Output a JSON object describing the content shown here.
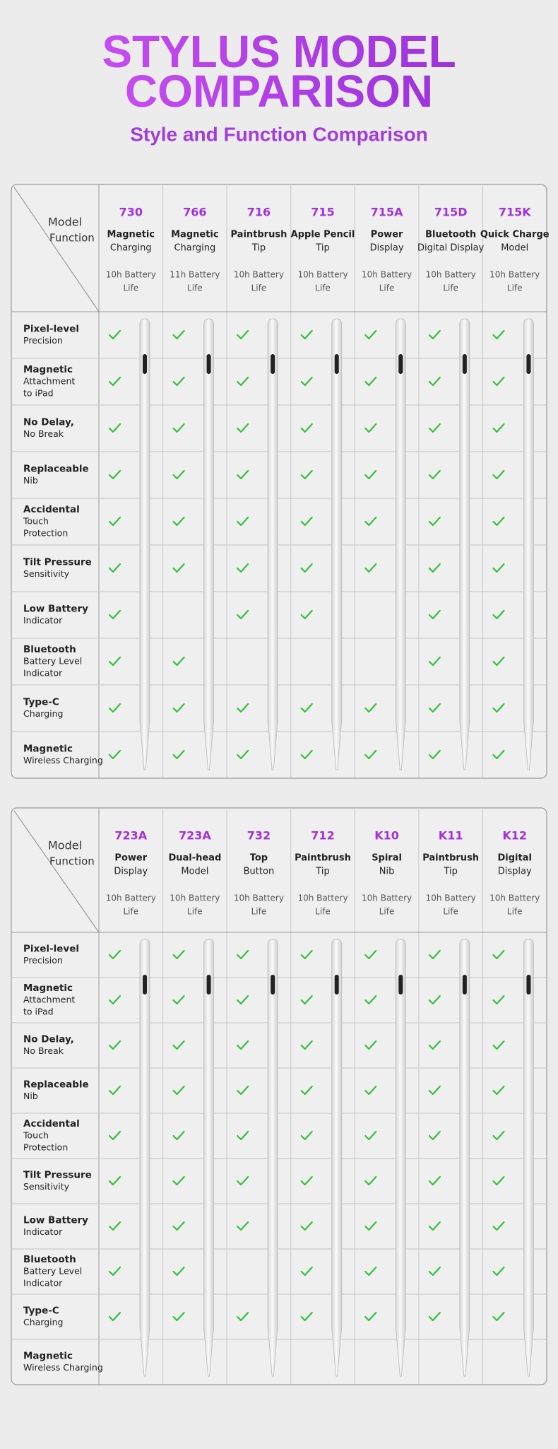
{
  "header": {
    "title_line1": "STYLUS MODEL",
    "title_line2": "COMPARISON",
    "subtitle": "Style and Function Comparison"
  },
  "tables": [
    {
      "corner_model": "Model",
      "corner_function": "Function",
      "models": [
        {
          "code": "730",
          "name": [
            "Magnetic",
            "Charging"
          ],
          "battery": [
            "10h Battery",
            "Life"
          ]
        },
        {
          "code": "766",
          "name": [
            "Magnetic",
            "Charging"
          ],
          "battery": [
            "11h Battery",
            "Life"
          ]
        },
        {
          "code": "716",
          "name": [
            "Paintbrush",
            "Tip"
          ],
          "battery": [
            "10h Battery",
            "Life"
          ]
        },
        {
          "code": "715",
          "name": [
            "Apple Pencil",
            "Tip"
          ],
          "battery": [
            "10h Battery",
            "Life"
          ]
        },
        {
          "code": "715A",
          "name": [
            "Power",
            "Display"
          ],
          "battery": [
            "10h Battery",
            "Life"
          ]
        },
        {
          "code": "715D",
          "name": [
            "Bluetooth",
            "Digital Display"
          ],
          "battery": [
            "10h Battery",
            "Life"
          ]
        },
        {
          "code": "715K",
          "name": [
            "Quick Charge",
            "Model"
          ],
          "battery": [
            "10h Battery",
            "Life"
          ]
        }
      ],
      "features": [
        {
          "label": [
            "Pixel-level",
            "Precision"
          ],
          "checks": [
            true,
            true,
            true,
            true,
            true,
            true,
            true
          ]
        },
        {
          "label": [
            "Magnetic",
            "Attachment",
            "to iPad"
          ],
          "checks": [
            true,
            true,
            true,
            true,
            true,
            true,
            true
          ]
        },
        {
          "label": [
            "No Delay,",
            "No Break"
          ],
          "checks": [
            true,
            true,
            true,
            true,
            true,
            true,
            true
          ]
        },
        {
          "label": [
            "Replaceable",
            "Nib"
          ],
          "checks": [
            true,
            true,
            true,
            true,
            true,
            true,
            true
          ]
        },
        {
          "label": [
            "Accidental",
            "Touch",
            "Protection"
          ],
          "checks": [
            true,
            true,
            true,
            true,
            true,
            true,
            true
          ]
        },
        {
          "label": [
            "Tilt Pressure",
            "Sensitivity"
          ],
          "checks": [
            true,
            true,
            true,
            true,
            true,
            true,
            true
          ]
        },
        {
          "label": [
            "Low Battery",
            "Indicator"
          ],
          "checks": [
            true,
            false,
            true,
            true,
            false,
            true,
            true
          ]
        },
        {
          "label": [
            "Bluetooth",
            "Battery Level",
            "Indicator"
          ],
          "checks": [
            true,
            true,
            false,
            false,
            false,
            true,
            true
          ]
        },
        {
          "label": [
            "Type-C",
            "Charging"
          ],
          "checks": [
            true,
            true,
            true,
            true,
            true,
            true,
            true
          ]
        },
        {
          "label": [
            "Magnetic",
            "Wireless Charging"
          ],
          "checks": [
            true,
            true,
            true,
            true,
            true,
            true,
            true
          ]
        }
      ]
    },
    {
      "corner_model": "Model",
      "corner_function": "Function",
      "models": [
        {
          "code": "723A",
          "name": [
            "Power",
            "Display"
          ],
          "battery": [
            "10h Battery",
            "Life"
          ]
        },
        {
          "code": "723A",
          "name": [
            "Dual-head",
            "Model"
          ],
          "battery": [
            "10h Battery",
            "Life"
          ]
        },
        {
          "code": "732",
          "name": [
            "Top",
            "Button"
          ],
          "battery": [
            "10h Battery",
            "Life"
          ]
        },
        {
          "code": "712",
          "name": [
            "Paintbrush",
            "Tip"
          ],
          "battery": [
            "10h Battery",
            "Life"
          ]
        },
        {
          "code": "K10",
          "name": [
            "Spiral",
            "Nib"
          ],
          "battery": [
            "10h Battery",
            "Life"
          ]
        },
        {
          "code": "K11",
          "name": [
            "Paintbrush",
            "Tip"
          ],
          "battery": [
            "10h Battery",
            "Life"
          ]
        },
        {
          "code": "K12",
          "name": [
            "Digital",
            "Display"
          ],
          "battery": [
            "10h Battery",
            "Life"
          ]
        }
      ],
      "features": [
        {
          "label": [
            "Pixel-level",
            "Precision"
          ],
          "checks": [
            true,
            true,
            true,
            true,
            true,
            true,
            true
          ]
        },
        {
          "label": [
            "Magnetic",
            "Attachment",
            "to iPad"
          ],
          "checks": [
            true,
            true,
            true,
            true,
            true,
            true,
            true
          ]
        },
        {
          "label": [
            "No Delay,",
            "No Break"
          ],
          "checks": [
            true,
            true,
            true,
            true,
            true,
            true,
            true
          ]
        },
        {
          "label": [
            "Replaceable",
            "Nib"
          ],
          "checks": [
            true,
            true,
            true,
            true,
            true,
            true,
            true
          ]
        },
        {
          "label": [
            "Accidental",
            "Touch",
            "Protection"
          ],
          "checks": [
            true,
            true,
            true,
            true,
            true,
            true,
            true
          ]
        },
        {
          "label": [
            "Tilt Pressure",
            "Sensitivity"
          ],
          "checks": [
            true,
            true,
            true,
            true,
            true,
            true,
            true
          ]
        },
        {
          "label": [
            "Low Battery",
            "Indicator"
          ],
          "checks": [
            true,
            true,
            true,
            true,
            true,
            true,
            true
          ]
        },
        {
          "label": [
            "Bluetooth",
            "Battery Level",
            "Indicator"
          ],
          "checks": [
            true,
            true,
            false,
            true,
            true,
            true,
            true
          ]
        },
        {
          "label": [
            "Type-C",
            "Charging"
          ],
          "checks": [
            true,
            true,
            true,
            true,
            true,
            true,
            true
          ]
        },
        {
          "label": [
            "Magnetic",
            "Wireless Charging"
          ],
          "checks": [
            false,
            false,
            false,
            false,
            false,
            false,
            false
          ]
        }
      ]
    }
  ]
}
